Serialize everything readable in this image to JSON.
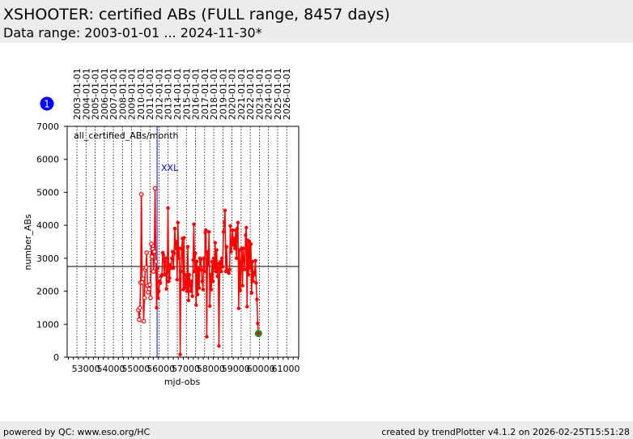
{
  "header": {
    "title": "XSHOOTER: certified ABs (FULL range, 8457 days)",
    "subtitle": "Data range: 2003-01-01 ... 2024-11-30*"
  },
  "footer": {
    "left": "powered by QC: www.eso.org/HC",
    "right": "created by trendPlotter v4.1.2 on 2026-02-25T15:51:28"
  },
  "badge": "1",
  "chart_data": {
    "type": "line",
    "title": "all_certified_ABs/month",
    "xlabel": "mjd-obs",
    "ylabel": "number_ABs",
    "xlim": [
      52250,
      61520
    ],
    "ylim": [
      0,
      7000
    ],
    "xticks": [
      53000,
      54000,
      55000,
      56000,
      57000,
      58000,
      59000,
      60000,
      61000
    ],
    "yticks": [
      0,
      1000,
      2000,
      3000,
      4000,
      5000,
      6000,
      7000
    ],
    "top_axis_labels": [
      "2003-01-01",
      "2004-01-01",
      "2005-01-01",
      "2006-01-01",
      "2007-01-01",
      "2008-01-01",
      "2009-01-01",
      "2010-01-01",
      "2011-01-01",
      "2012-01-01",
      "2013-01-01",
      "2014-01-01",
      "2015-01-01",
      "2016-01-01",
      "2017-01-01",
      "2018-01-01",
      "2019-01-01",
      "2020-01-01",
      "2021-01-01",
      "2022-01-01",
      "2023-01-01",
      "2024-01-01",
      "2025-01-01",
      "2026-01-01"
    ],
    "top_axis_mjd_start": 52640,
    "reference_line": {
      "y": 2750
    },
    "event_line": {
      "x": 55850,
      "label": "XXL"
    },
    "x_start_mjd": 55100,
    "x_step_days": 30.44,
    "series_open": [
      1430,
      1140,
      1500,
      2260,
      4940,
      2270,
      2380,
      1090,
      1800,
      2660,
      2720,
      3170,
      2170,
      1970,
      2070,
      2200,
      1800,
      3440,
      3050,
      3280,
      2600,
      3200,
      5120,
      2900
    ],
    "series_filled": [
      1500,
      2700,
      1800,
      2000,
      2300,
      2250,
      2450,
      2500,
      3170,
      3100,
      2500,
      2900,
      3000,
      2070,
      2600,
      4520,
      2300,
      2400,
      2800,
      2700,
      3000,
      3200,
      2700,
      3150,
      3900,
      3300,
      3500,
      2350,
      4080,
      3000,
      3300,
      80,
      2600,
      3300,
      3600,
      2050,
      3620,
      2100,
      2200,
      2500,
      2000,
      3350,
      1720,
      2500,
      2200,
      2000,
      2300,
      1850,
      2950,
      4030,
      2600,
      3150,
      1580,
      2900,
      1900,
      2700,
      2100,
      3000,
      2950,
      2650,
      2300,
      2050,
      3000,
      2600,
      3780,
      3850,
      620,
      3200,
      2800,
      3800,
      1550,
      2500,
      2050,
      2900,
      2300,
      3000,
      2700,
      3470,
      2600,
      3250,
      2450,
      2830,
      340,
      2700,
      2900,
      2600,
      3000,
      2750,
      3800,
      4080,
      4450,
      2600,
      3350,
      2650,
      2600,
      2550,
      2650,
      3980,
      3200,
      3500,
      3850,
      3400,
      3600,
      3300,
      3850,
      3000,
      3900,
      4080,
      1480,
      3250,
      2020,
      2900,
      3300,
      2170,
      3300,
      2950,
      2660,
      3700,
      3930,
      1530,
      3550,
      2500,
      3500,
      2700,
      3430,
      1950,
      2900,
      2300,
      2500,
      2580,
      2930,
      2250,
      1750,
      1020
    ],
    "last_point": {
      "value": 720,
      "color": "#228b22"
    },
    "colors": {
      "series": "#ff0000",
      "event": "#0000ff",
      "badge": "#0000ff"
    }
  }
}
